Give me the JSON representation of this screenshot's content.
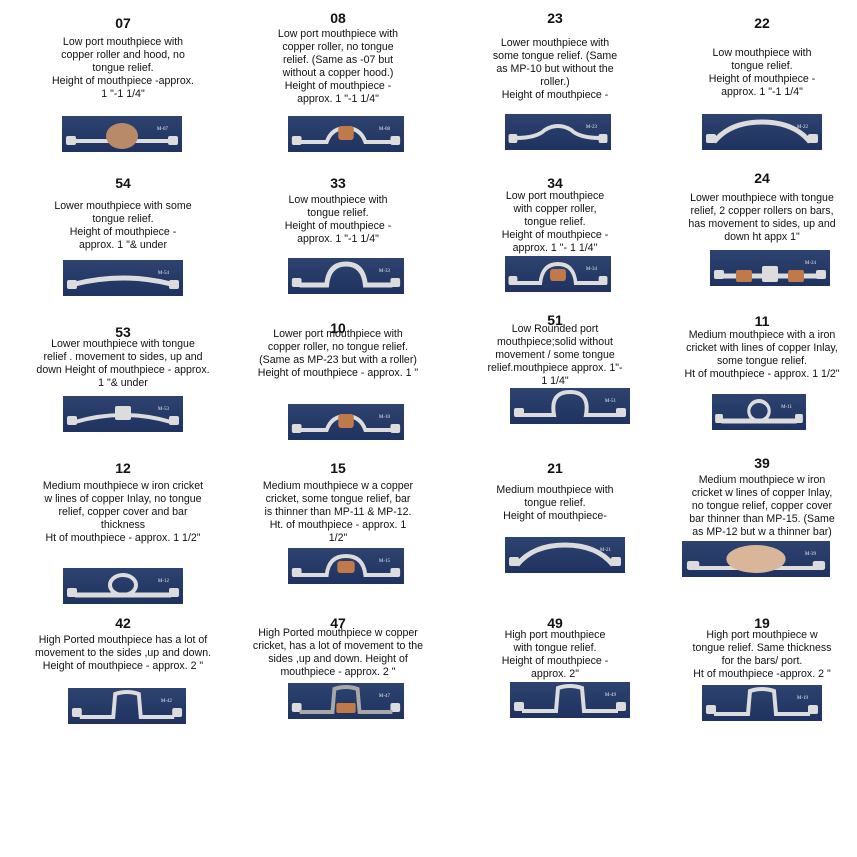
{
  "items": [
    {
      "number": "07",
      "description": "Low port mouthpiece with\ncopper roller and hood, no\ntongue relief.\nHeight of mouthpiece -approx.\n1 \"-1 1/4\"",
      "photo_label": "M-07",
      "bit": "hood"
    },
    {
      "number": "08",
      "description": "Low port mouthpiece with\ncopper roller, no tongue\nrelief. (Same as -07 but\nwithout a copper hood.)\nHeight of mouthpiece -\napprox. 1 \"-1 1/4\"",
      "photo_label": "M-08",
      "bit": "roller"
    },
    {
      "number": "23",
      "description": "Lower mouthpiece with\nsome tongue relief. (Same\nas MP-10 but without the\nroller.)\nHeight of mouthpiece -",
      "photo_label": "M-23",
      "bit": "lowcurve"
    },
    {
      "number": "22",
      "description": "Low mouthpiece with\ntongue relief.\nHeight of mouthpiece -\napprox. 1 \"-1 1/4\"",
      "photo_label": "M-22",
      "bit": "arch"
    },
    {
      "number": "54",
      "description": "Lower mouthpiece with some\ntongue relief.\nHeight of mouthpiece -\napprox. 1 \"& under",
      "photo_label": "M-54",
      "bit": "flatcurve"
    },
    {
      "number": "33",
      "description": "Low mouthpiece with\ntongue relief.\nHeight of mouthpiece -\napprox. 1 \"-1 1/4\"",
      "photo_label": "M-33",
      "bit": "port"
    },
    {
      "number": "34",
      "description": "Low port mouthpiece\nwith copper roller,\ntongue relief.\nHeight of mouthpiece -\napprox. 1 \"- 1 1/4\"",
      "photo_label": "M-34",
      "bit": "portroller"
    },
    {
      "number": "24",
      "description": "Lower mouthpiece with tongue\nrelief, 2 copper rollers on bars,\nhas movement to sides, up and\ndown ht appx 1\"",
      "photo_label": "M-24",
      "bit": "tworollers"
    },
    {
      "number": "53",
      "description": "Lower mouthpiece with tongue\nrelief . movement to sides, up and\ndown Height of mouthpiece - approx.\n1 \"& under",
      "photo_label": "M-53",
      "bit": "hinged"
    },
    {
      "number": "10",
      "description": "Lower port mouthpiece with\ncopper roller, no tongue relief.\n(Same as MP-23 but with a roller)\nHeight of mouthpiece - approx. 1 \"",
      "photo_label": "M-10",
      "bit": "roller"
    },
    {
      "number": "51",
      "description": "Low Rounded port\nmouthpiece;solid without\nmovement / some tongue\nrelief.mouthpiece approx. 1\"-\n1 1/4\"",
      "photo_label": "M-51",
      "bit": "round"
    },
    {
      "number": "11",
      "description": "Medium mouthpiece with a iron\ncricket with lines of copper Inlay,\nsome tongue relief.\nHt of mouthpiece - approx. 1 1/2\"",
      "photo_label": "M-11",
      "bit": "cricket"
    },
    {
      "number": "12",
      "description": "Medium mouthpiece w iron cricket\nw lines of copper Inlay, no tongue\nrelief, copper cover and bar\nthickness\nHt of mouthpiece - approx. 1 1/2\"",
      "photo_label": "M-12",
      "bit": "cricket"
    },
    {
      "number": "15",
      "description": "Medium mouthpiece w a copper\ncricket, some tongue relief, bar\nis thinner than MP-11 & MP-12.\nHt. of mouthpiece - approx. 1\n1/2\"",
      "photo_label": "M-15",
      "bit": "portroller"
    },
    {
      "number": "21",
      "description": "Medium mouthpiece with\ntongue relief.\nHeight of mouthpiece-",
      "photo_label": "M-21",
      "bit": "arch"
    },
    {
      "number": "39",
      "description": "Medium mouthpiece w iron\ncricket w lines of copper Inlay,\nno tongue relief, copper cover\nbar thinner than MP-15. (Same\nas MP-12 but w a thinner bar)",
      "photo_label": "M-39",
      "bit": "cover"
    },
    {
      "number": "42",
      "description": "High Ported mouthpiece has a lot of\nmovement to the sides ,up and down.\nHeight of mouthpiece - approx. 2 \"",
      "photo_label": "M-42",
      "bit": "highport"
    },
    {
      "number": "47",
      "description": "High Ported mouthpiece w copper\ncricket, has a lot of movement to the\nsides ,up and down. Height of\nmouthpiece - approx. 2 \"",
      "photo_label": "M-47",
      "bit": "highroller"
    },
    {
      "number": "49",
      "description": "High port mouthpiece\nwith tongue relief.\nHeight of mouthpiece -\napprox. 2\"",
      "photo_label": "M-49",
      "bit": "highport"
    },
    {
      "number": "19",
      "description": "High port mouthpiece w\ntongue relief. Same thickness\nfor the bars/ port.\nHt of mouthpiece -approx. 2 \"",
      "photo_label": "M-19",
      "bit": "highport"
    }
  ]
}
